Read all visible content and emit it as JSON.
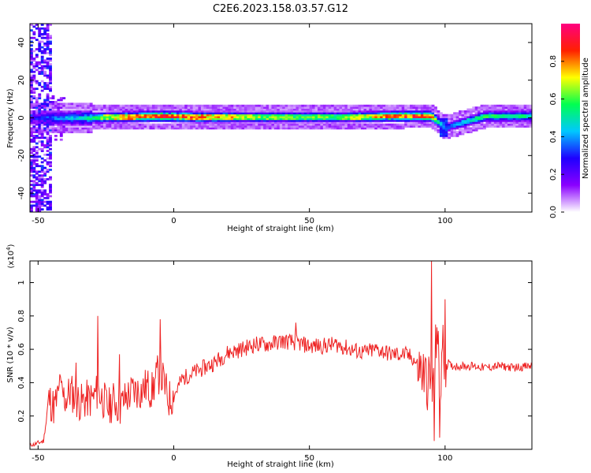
{
  "title": "C2E6.2023.158.03.57.G12",
  "chart_data": [
    {
      "type": "heatmap",
      "xlabel": "Height of straight line (km)",
      "ylabel": "Frequency (Hz)",
      "xlim": [
        -53,
        132
      ],
      "ylim": [
        -50,
        50
      ],
      "xticks": [
        -50,
        0,
        50,
        100
      ],
      "yticks": [
        -40,
        -20,
        0,
        20,
        40
      ],
      "colorbar": {
        "label": "Normalized spectral amplitude",
        "range": [
          0.0,
          1.0
        ],
        "ticks": [
          "0.0",
          "0.2",
          "0.4",
          "0.6",
          "0.8"
        ],
        "tick_values": [
          0.0,
          0.2,
          0.4,
          0.6,
          0.8
        ],
        "colors": [
          "#ffffff",
          "#8a00ff",
          "#1f00ff",
          "#00c8ff",
          "#00ff50",
          "#ffff00",
          "#ff2000",
          "#ff0080"
        ]
      },
      "ridge": [
        {
          "x": -53,
          "freq": 0,
          "amp": 0.2
        },
        {
          "x": -45,
          "freq": 0,
          "amp": 0.35
        },
        {
          "x": -35,
          "freq": 0,
          "amp": 0.45
        },
        {
          "x": -20,
          "freq": 0.5,
          "amp": 0.7
        },
        {
          "x": -5,
          "freq": 1,
          "amp": 0.85
        },
        {
          "x": 10,
          "freq": 0.5,
          "amp": 0.75
        },
        {
          "x": 30,
          "freq": 0.5,
          "amp": 0.6
        },
        {
          "x": 60,
          "freq": 0.5,
          "amp": 0.55
        },
        {
          "x": 85,
          "freq": 1,
          "amp": 0.85
        },
        {
          "x": 95,
          "freq": 1,
          "amp": 0.8
        },
        {
          "x": 100,
          "freq": -5,
          "amp": 0.3
        },
        {
          "x": 115,
          "freq": 1,
          "amp": 0.55
        },
        {
          "x": 132,
          "freq": 1,
          "amp": 0.5
        }
      ]
    },
    {
      "type": "line",
      "xlabel": "Height of straight line (km)",
      "ylabel": "SNR (10 * v/v)",
      "yscale_label": "(x10",
      "yscale_exp": "4",
      "yscale_close": ")",
      "xlim": [
        -53,
        132
      ],
      "ylim": [
        0,
        1.13
      ],
      "xticks": [
        -50,
        0,
        50,
        100
      ],
      "yticks": [
        0.2,
        0.4,
        0.6,
        0.8,
        1
      ],
      "color": "#ee2222",
      "series": [
        {
          "x": [
            -53,
            -48,
            -46,
            -44,
            -42,
            -40,
            -38,
            -36,
            -34,
            -32,
            -30,
            -28,
            -26,
            -24,
            -22,
            -20,
            -18,
            -15,
            -12,
            -10,
            -8,
            -6,
            -4,
            -2,
            0,
            3,
            6,
            10,
            15,
            20,
            25,
            30,
            35,
            40,
            45,
            50,
            55,
            60,
            65,
            70,
            75,
            80,
            85,
            88,
            90,
            92,
            94,
            96,
            97,
            98,
            99,
            100,
            102,
            105,
            110,
            115,
            120,
            125,
            132
          ],
          "y": [
            0.02,
            0.05,
            0.3,
            0.25,
            0.35,
            0.3,
            0.35,
            0.3,
            0.28,
            0.3,
            0.3,
            0.35,
            0.3,
            0.25,
            0.3,
            0.25,
            0.3,
            0.35,
            0.35,
            0.38,
            0.35,
            0.45,
            0.42,
            0.3,
            0.32,
            0.42,
            0.45,
            0.48,
            0.52,
            0.58,
            0.6,
            0.63,
            0.63,
            0.65,
            0.64,
            0.62,
            0.62,
            0.63,
            0.6,
            0.58,
            0.6,
            0.57,
            0.57,
            0.55,
            0.5,
            0.45,
            0.4,
            0.35,
            0.8,
            0.3,
            0.6,
            0.55,
            0.5,
            0.5,
            0.5,
            0.49,
            0.5,
            0.49,
            0.5
          ]
        }
      ],
      "spikes": [
        {
          "x": -42,
          "y": 0.45
        },
        {
          "x": -36,
          "y": 0.52
        },
        {
          "x": -28,
          "y": 0.8
        },
        {
          "x": -20,
          "y": 0.57
        },
        {
          "x": -5,
          "y": 0.78
        },
        {
          "x": 45,
          "y": 0.76
        },
        {
          "x": 95,
          "y": 1.13
        },
        {
          "x": 96,
          "y": 0.05
        },
        {
          "x": 98,
          "y": 0.07
        },
        {
          "x": 100,
          "y": 0.9
        }
      ]
    }
  ]
}
